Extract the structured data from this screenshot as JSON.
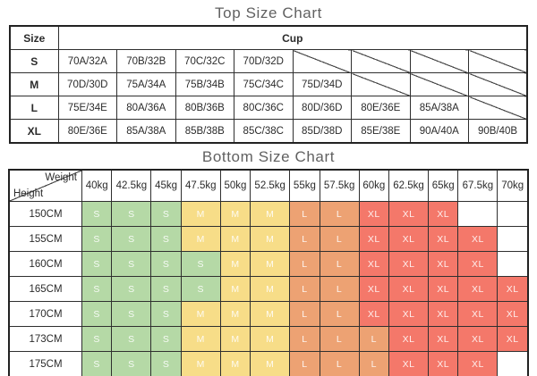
{
  "top_chart": {
    "title": "Top Size Chart",
    "header": {
      "size": "Size",
      "cup": "Cup"
    },
    "rows": [
      {
        "size": "S",
        "cells": [
          "70A/32A",
          "70B/32B",
          "70C/32C",
          "70D/32D",
          null,
          null,
          null,
          null
        ]
      },
      {
        "size": "M",
        "cells": [
          "70D/30D",
          "75A/34A",
          "75B/34B",
          "75C/34C",
          "75D/34D",
          null,
          null,
          null
        ]
      },
      {
        "size": "L",
        "cells": [
          "75E/34E",
          "80A/36A",
          "80B/36B",
          "80C/36C",
          "80D/36D",
          "80E/36E",
          "85A/38A",
          null
        ]
      },
      {
        "size": "XL",
        "cells": [
          "80E/36E",
          "85A/38A",
          "85B/38B",
          "85C/38C",
          "85D/38D",
          "85E/38E",
          "90A/40A",
          "90B/40B"
        ]
      }
    ]
  },
  "bottom_chart": {
    "title": "Bottom Size Chart",
    "corner": {
      "top_right": "Weight",
      "bottom_left": "Height"
    },
    "weights": [
      "40kg",
      "42.5kg",
      "45kg",
      "47.5kg",
      "50kg",
      "52.5kg",
      "55kg",
      "57.5kg",
      "60kg",
      "62.5kg",
      "65kg",
      "67.5kg",
      "70kg"
    ],
    "rows": [
      {
        "height": "150CM",
        "sizes": [
          "S",
          "S",
          "S",
          "M",
          "M",
          "M",
          "L",
          "L",
          "XL",
          "XL",
          "XL",
          "",
          ""
        ]
      },
      {
        "height": "155CM",
        "sizes": [
          "S",
          "S",
          "S",
          "M",
          "M",
          "M",
          "L",
          "L",
          "XL",
          "XL",
          "XL",
          "XL",
          ""
        ]
      },
      {
        "height": "160CM",
        "sizes": [
          "S",
          "S",
          "S",
          "S",
          "M",
          "M",
          "L",
          "L",
          "XL",
          "XL",
          "XL",
          "XL",
          ""
        ]
      },
      {
        "height": "165CM",
        "sizes": [
          "S",
          "S",
          "S",
          "S",
          "M",
          "M",
          "L",
          "L",
          "XL",
          "XL",
          "XL",
          "XL",
          "XL"
        ]
      },
      {
        "height": "170CM",
        "sizes": [
          "S",
          "S",
          "S",
          "M",
          "M",
          "M",
          "L",
          "L",
          "XL",
          "XL",
          "XL",
          "XL",
          "XL"
        ]
      },
      {
        "height": "173CM",
        "sizes": [
          "S",
          "S",
          "S",
          "M",
          "M",
          "M",
          "L",
          "L",
          "L",
          "XL",
          "XL",
          "XL",
          "XL"
        ]
      },
      {
        "height": "175CM",
        "sizes": [
          "S",
          "S",
          "S",
          "M",
          "M",
          "M",
          "L",
          "L",
          "L",
          "XL",
          "XL",
          "XL",
          ""
        ]
      }
    ],
    "size_colors": {
      "S": "#b5d9a6",
      "M": "#f7dd88",
      "L": "#eda273",
      "XL": "#f4786a"
    }
  },
  "chart_data": [
    {
      "type": "table",
      "title": "Top Size Chart",
      "columns": [
        "Size",
        "Cup"
      ],
      "rows": [
        [
          "S",
          "70A/32A",
          "70B/32B",
          "70C/32C",
          "70D/32D",
          "",
          "",
          "",
          ""
        ],
        [
          "M",
          "70D/30D",
          "75A/34A",
          "75B/34B",
          "75C/34C",
          "75D/34D",
          "",
          "",
          ""
        ],
        [
          "L",
          "75E/34E",
          "80A/36A",
          "80B/36B",
          "80C/36C",
          "80D/36D",
          "80E/36E",
          "85A/38A",
          ""
        ],
        [
          "XL",
          "80E/36E",
          "85A/38A",
          "85B/38B",
          "85C/38C",
          "85D/38D",
          "85E/38E",
          "90A/40A",
          "90B/40B"
        ]
      ]
    },
    {
      "type": "table",
      "title": "Bottom Size Chart",
      "columns": [
        "Height\\Weight",
        "40kg",
        "42.5kg",
        "45kg",
        "47.5kg",
        "50kg",
        "52.5kg",
        "55kg",
        "57.5kg",
        "60kg",
        "62.5kg",
        "65kg",
        "67.5kg",
        "70kg"
      ],
      "rows": [
        [
          "150CM",
          "S",
          "S",
          "S",
          "M",
          "M",
          "M",
          "L",
          "L",
          "XL",
          "XL",
          "XL",
          "",
          ""
        ],
        [
          "155CM",
          "S",
          "S",
          "S",
          "M",
          "M",
          "M",
          "L",
          "L",
          "XL",
          "XL",
          "XL",
          "XL",
          ""
        ],
        [
          "160CM",
          "S",
          "S",
          "S",
          "S",
          "M",
          "M",
          "L",
          "L",
          "XL",
          "XL",
          "XL",
          "XL",
          ""
        ],
        [
          "165CM",
          "S",
          "S",
          "S",
          "S",
          "M",
          "M",
          "L",
          "L",
          "XL",
          "XL",
          "XL",
          "XL",
          "XL"
        ],
        [
          "170CM",
          "S",
          "S",
          "S",
          "M",
          "M",
          "M",
          "L",
          "L",
          "XL",
          "XL",
          "XL",
          "XL",
          "XL"
        ],
        [
          "173CM",
          "S",
          "S",
          "S",
          "M",
          "M",
          "M",
          "L",
          "L",
          "L",
          "XL",
          "XL",
          "XL",
          "XL"
        ],
        [
          "175CM",
          "S",
          "S",
          "S",
          "M",
          "M",
          "M",
          "L",
          "L",
          "L",
          "XL",
          "XL",
          "XL",
          ""
        ]
      ]
    }
  ]
}
